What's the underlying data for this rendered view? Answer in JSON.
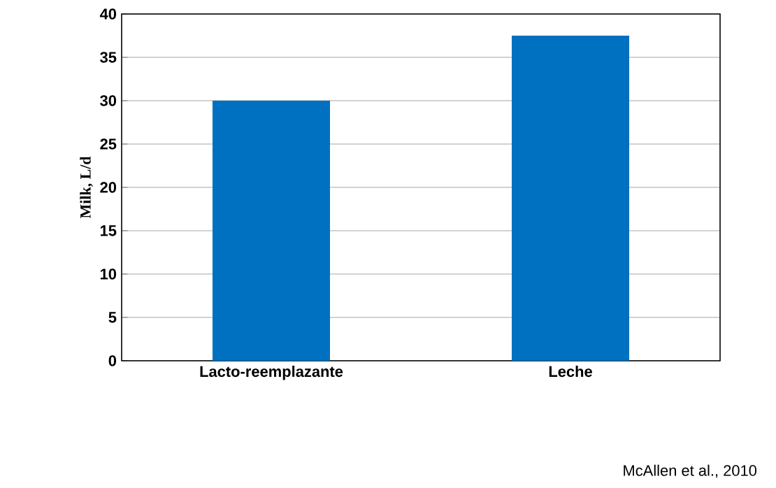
{
  "chart_data": {
    "type": "bar",
    "categories": [
      "Lacto-reemplazante",
      "Leche"
    ],
    "values": [
      30,
      37.5
    ],
    "color": "#0070c0",
    "ylabel": "Milk, L/d",
    "ylim": [
      0,
      40
    ],
    "yticks": [
      0,
      5,
      10,
      15,
      20,
      25,
      30,
      35,
      40
    ],
    "grid": "y",
    "annotations": [
      "McAllen et al., 2010"
    ]
  }
}
